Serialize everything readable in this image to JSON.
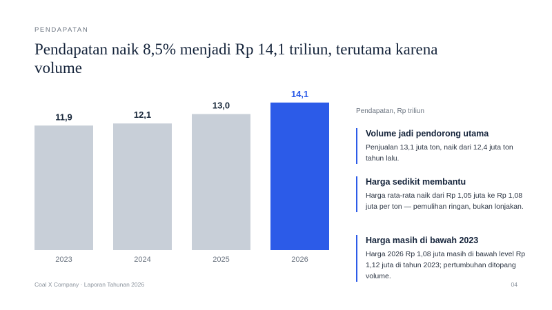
{
  "eyebrow": "PENDAPATAN",
  "title": "Pendapatan naik 8,5% menjadi Rp 14,1 triliun, terutama karena volume",
  "chart_caption": "Pendapatan, Rp triliun",
  "chart_data": {
    "type": "bar",
    "categories": [
      "2023",
      "2024",
      "2025",
      "2026"
    ],
    "values": [
      11.9,
      12.1,
      13.0,
      14.1
    ],
    "value_labels": [
      "11,9",
      "12,1",
      "13,0",
      "14,1"
    ],
    "highlight_index": 3,
    "ylim": [
      0,
      16
    ],
    "grid": false,
    "colors": {
      "bar": "#c8cfd8",
      "highlight": "#2c5be8"
    }
  },
  "cards": [
    {
      "title": "Volume jadi pendorong utama",
      "body": "Penjualan 13,1 juta ton, naik dari 12,4 juta ton tahun lalu."
    },
    {
      "title": "Harga sedikit membantu",
      "body": "Harga rata-rata naik dari Rp 1,05 juta ke Rp 1,08 juta per ton — pemulihan ringan, bukan lonjakan."
    },
    {
      "title": "Harga masih di bawah 2023",
      "body": "Harga 2026 Rp 1,08 juta masih di bawah level Rp 1,12 juta di tahun 2023; pertumbuhan ditopang volume."
    }
  ],
  "footer": "Coal X Company · Laporan Tahunan 2026",
  "page_number": "04",
  "accent_color": "#2c5be8"
}
